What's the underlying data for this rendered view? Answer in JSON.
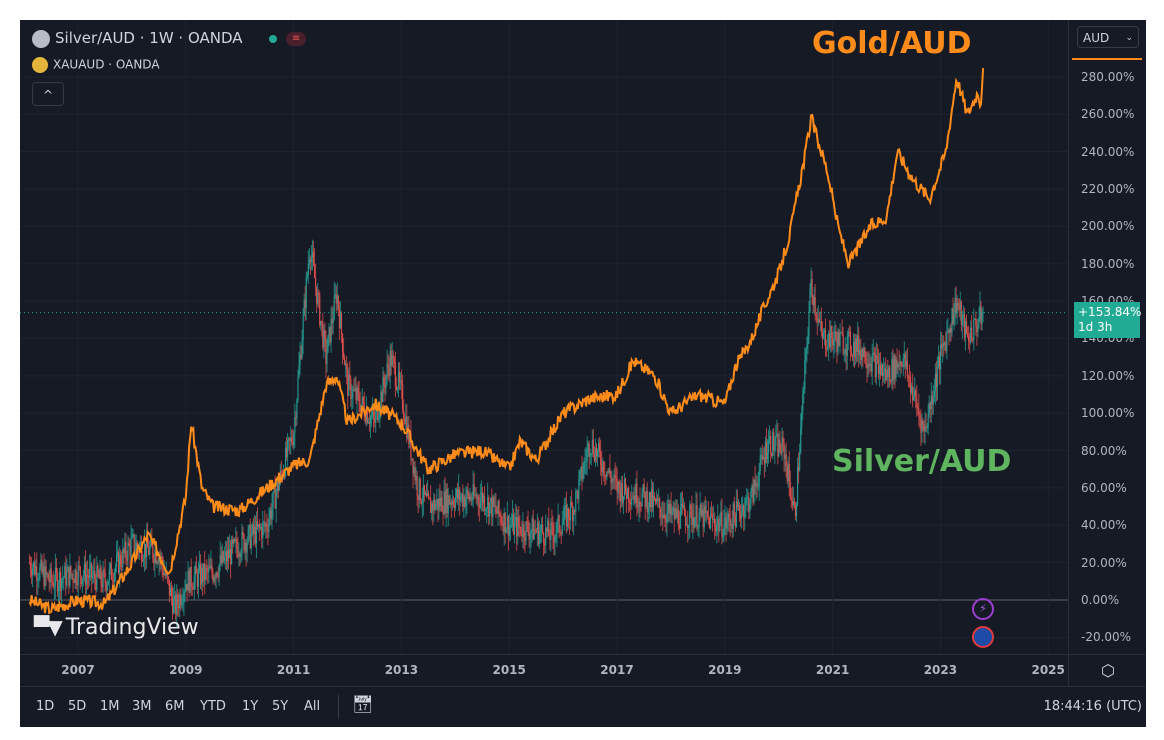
{
  "header": {
    "main_symbol": "Silver/AUD · 1W · OANDA",
    "compare_symbol": "XAUAUD · OANDA",
    "currency": "AUD"
  },
  "price_label": {
    "value": "+153.84%",
    "countdown": "1d 3h"
  },
  "annotations": {
    "gold": "Gold/AUD",
    "silver": "Silver/AUD"
  },
  "logo": "TradingView",
  "toolbar": {
    "ranges": [
      "1D",
      "5D",
      "1M",
      "3M",
      "6M",
      "YTD",
      "1Y",
      "5Y",
      "All"
    ],
    "clock": "18:44:16 (UTC)"
  },
  "colors": {
    "gold": "#ff8c1a",
    "silver_up": "#26a69a",
    "silver_down": "#ef5350",
    "price_label": "#22ab94",
    "silver_text": "#5fb55f"
  },
  "chart_data": {
    "type": "line",
    "title": "Silver/AUD · 1W · OANDA vs XAUAUD (percent scale)",
    "xlabel": "",
    "ylabel": "%",
    "x_ticks": [
      "2007",
      "2009",
      "2011",
      "2013",
      "2015",
      "2017",
      "2019",
      "2021",
      "2023",
      "2025"
    ],
    "y_ticks": [
      "280.00%",
      "260.00%",
      "240.00%",
      "220.00%",
      "200.00%",
      "180.00%",
      "160.00%",
      "140.00%",
      "120.00%",
      "100.00%",
      "80.00%",
      "60.00%",
      "40.00%",
      "20.00%",
      "0.00%",
      "-20.00%"
    ],
    "ylim": [
      -28,
      300
    ],
    "xlim": [
      2006.07,
      2025.4
    ],
    "grid": true,
    "series": [
      {
        "name": "XAUAUD (Gold/AUD)",
        "type": "line",
        "x": [
          2006.1,
          2006.5,
          2007,
          2007.5,
          2008,
          2008.3,
          2008.7,
          2009.0,
          2009.1,
          2009.3,
          2009.5,
          2010,
          2010.5,
          2011,
          2011.3,
          2011.6,
          2011.8,
          2012,
          2012.5,
          2013,
          2013.3,
          2013.5,
          2014,
          2014.5,
          2015,
          2015.2,
          2015.5,
          2016,
          2016.5,
          2017,
          2017.3,
          2017.7,
          2018,
          2018.5,
          2019,
          2019.2,
          2019.5,
          2019.7,
          2020,
          2020.2,
          2020.5,
          2020.6,
          2020.9,
          2021.1,
          2021.3,
          2021.7,
          2022,
          2022.2,
          2022.5,
          2022.8,
          2023.1,
          2023.3,
          2023.5,
          2023.7,
          2023.75,
          2023.8
        ],
        "y": [
          0,
          -5,
          0,
          -2,
          20,
          35,
          15,
          55,
          95,
          60,
          50,
          48,
          60,
          72,
          75,
          115,
          120,
          95,
          105,
          95,
          80,
          70,
          78,
          80,
          70,
          85,
          75,
          100,
          108,
          110,
          128,
          120,
          100,
          110,
          105,
          125,
          140,
          155,
          175,
          195,
          240,
          258,
          230,
          200,
          180,
          200,
          205,
          240,
          225,
          215,
          240,
          280,
          260,
          272,
          265,
          292
        ]
      },
      {
        "name": "Silver/AUD",
        "type": "candlestick_close",
        "x": [
          2006.1,
          2006.5,
          2007,
          2007.5,
          2008,
          2008.5,
          2008.8,
          2009,
          2009.5,
          2010,
          2010.5,
          2011,
          2011.3,
          2011.6,
          2011.8,
          2012,
          2012.5,
          2012.8,
          2013,
          2013.3,
          2013.5,
          2014,
          2014.5,
          2015,
          2015.8,
          2016.2,
          2016.5,
          2017,
          2017.5,
          2018,
          2018.5,
          2019,
          2019.5,
          2019.8,
          2020.1,
          2020.3,
          2020.6,
          2020.8,
          2021,
          2021.5,
          2022,
          2022.3,
          2022.7,
          2023,
          2023.3,
          2023.5,
          2023.8
        ],
        "y": [
          20,
          10,
          15,
          10,
          30,
          25,
          -5,
          10,
          15,
          30,
          40,
          90,
          190,
          130,
          165,
          115,
          95,
          130,
          110,
          60,
          50,
          55,
          55,
          40,
          35,
          50,
          85,
          60,
          55,
          45,
          45,
          40,
          55,
          85,
          80,
          45,
          170,
          140,
          140,
          135,
          120,
          130,
          90,
          130,
          160,
          140,
          154
        ]
      }
    ],
    "last_value": 153.84
  }
}
